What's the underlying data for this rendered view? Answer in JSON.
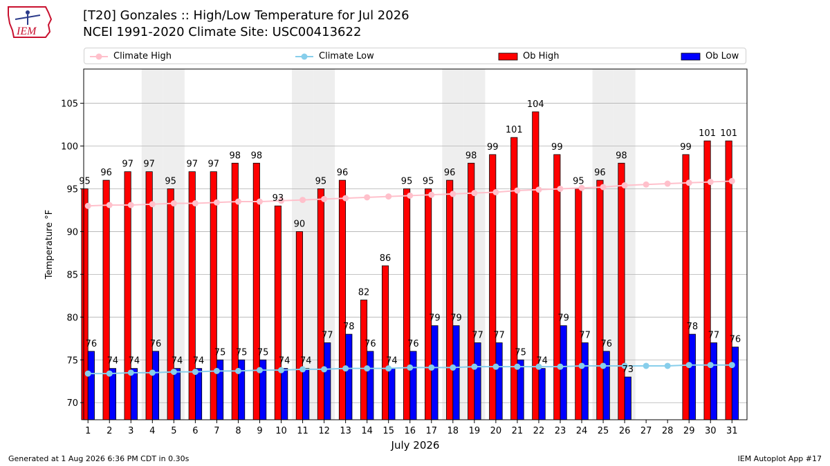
{
  "header": {
    "title_line1": "[T20] Gonzales :: High/Low Temperature for Jul 2026",
    "title_line2": "NCEI 1991-2020 Climate Site: USC00413622",
    "logo_text": "IEM"
  },
  "legend": {
    "climate_high": "Climate High",
    "climate_low": "Climate Low",
    "ob_high": "Ob High",
    "ob_low": "Ob Low",
    "placement": "top"
  },
  "footer": {
    "left": "Generated at 1 Aug 2026 6:36 PM CDT in 0.30s",
    "right": "IEM Autoplot App #17"
  },
  "colors": {
    "ob_high": "#ff0000",
    "ob_low": "#0000ff",
    "climate_high": "#ffc0cb",
    "climate_low": "#87ceeb",
    "weekend_band": "#eeeeee",
    "grid": "#b0b0b0"
  },
  "chart_data": {
    "type": "bar",
    "xlabel": "July 2026",
    "ylabel": "Temperature °F",
    "ylim": [
      68,
      109
    ],
    "yticks": [
      70,
      75,
      80,
      85,
      90,
      95,
      100,
      105
    ],
    "grid": true,
    "weekend_days": [
      4,
      5,
      11,
      12,
      18,
      19,
      25,
      26
    ],
    "days": [
      1,
      2,
      3,
      4,
      5,
      6,
      7,
      8,
      9,
      10,
      11,
      12,
      13,
      14,
      15,
      16,
      17,
      18,
      19,
      20,
      21,
      22,
      23,
      24,
      25,
      26,
      27,
      28,
      29,
      30,
      31
    ],
    "series": [
      {
        "name": "Ob High",
        "kind": "bar",
        "values": [
          95,
          96,
          97,
          97,
          95,
          97,
          97,
          98,
          98,
          93,
          90,
          95,
          96,
          82,
          86,
          95,
          95,
          96,
          98,
          99,
          101,
          104,
          99,
          95,
          96,
          98,
          null,
          null,
          99,
          100.6,
          100.6
        ],
        "labels": [
          "95",
          "96",
          "97",
          "97",
          "95",
          "97",
          "97",
          "98",
          "98",
          "93",
          "90",
          "95",
          "96",
          "82",
          "86",
          "95",
          "95",
          "96",
          "98",
          "99",
          "101",
          "104",
          "99",
          "95",
          "96",
          "98",
          "",
          "",
          "99",
          "101",
          "101"
        ]
      },
      {
        "name": "Ob Low",
        "kind": "bar",
        "values": [
          76,
          74,
          74,
          76,
          74,
          74,
          75,
          75,
          75,
          74,
          74,
          77,
          78,
          76,
          74,
          76,
          79,
          79,
          77,
          77,
          75,
          74,
          79,
          77,
          76,
          73,
          null,
          null,
          78,
          77,
          76.5
        ],
        "labels": [
          "76",
          "74",
          "74",
          "76",
          "74",
          "74",
          "75",
          "75",
          "75",
          "74",
          "74",
          "77",
          "78",
          "76",
          "74",
          "76",
          "79",
          "79",
          "77",
          "77",
          "75",
          "74",
          "79",
          "77",
          "76",
          "73",
          "",
          "",
          "78",
          "77",
          "76"
        ]
      },
      {
        "name": "Climate High",
        "kind": "line",
        "values": [
          93.0,
          93.1,
          93.1,
          93.2,
          93.3,
          93.3,
          93.4,
          93.5,
          93.5,
          93.6,
          93.7,
          93.8,
          93.9,
          94.0,
          94.1,
          94.2,
          94.3,
          94.4,
          94.5,
          94.6,
          94.8,
          94.9,
          95.0,
          95.1,
          95.2,
          95.4,
          95.5,
          95.6,
          95.7,
          95.8,
          95.9
        ]
      },
      {
        "name": "Climate Low",
        "kind": "line",
        "values": [
          73.4,
          73.4,
          73.5,
          73.5,
          73.6,
          73.6,
          73.7,
          73.7,
          73.8,
          73.8,
          73.9,
          73.9,
          74.0,
          74.0,
          74.0,
          74.1,
          74.1,
          74.1,
          74.2,
          74.2,
          74.2,
          74.2,
          74.2,
          74.3,
          74.3,
          74.3,
          74.3,
          74.3,
          74.4,
          74.4,
          74.4
        ]
      }
    ]
  }
}
